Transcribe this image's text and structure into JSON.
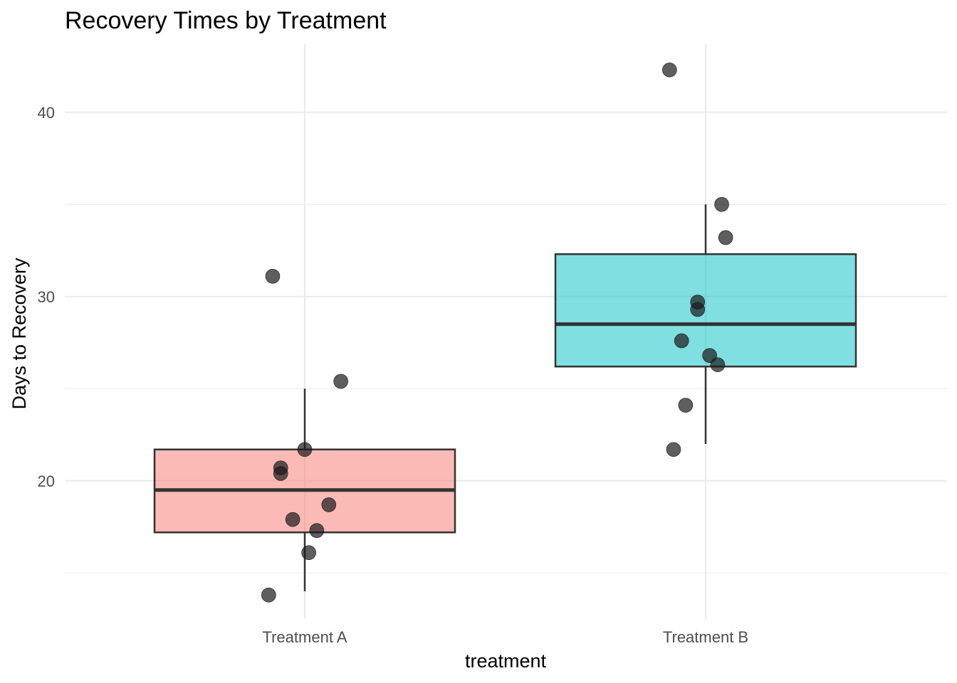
{
  "chart_data": {
    "type": "boxplot",
    "title": "Recovery Times by Treatment",
    "xlabel": "treatment",
    "ylabel": "Days to Recovery",
    "ylim": [
      12.5,
      43.7
    ],
    "yticks": [
      20,
      30,
      40
    ],
    "yminor": [
      15,
      25,
      35
    ],
    "grid": true,
    "categories": [
      "Treatment A",
      "Treatment B"
    ],
    "boxes": [
      {
        "category": "Treatment A",
        "color": "#F8766D",
        "whisker_low": 14.0,
        "q1": 17.2,
        "median": 19.5,
        "q3": 21.7,
        "whisker_high": 25.0,
        "points": [
          {
            "x": -0.08,
            "y": 31.1
          },
          {
            "x": 0.09,
            "y": 25.4
          },
          {
            "x": 0.0,
            "y": 21.7
          },
          {
            "x": -0.06,
            "y": 20.7
          },
          {
            "x": -0.06,
            "y": 20.4
          },
          {
            "x": 0.06,
            "y": 18.7
          },
          {
            "x": -0.03,
            "y": 17.9
          },
          {
            "x": 0.03,
            "y": 17.3
          },
          {
            "x": 0.01,
            "y": 16.1
          },
          {
            "x": -0.09,
            "y": 13.8
          }
        ]
      },
      {
        "category": "Treatment B",
        "color": "#00BFC4",
        "whisker_low": 22.0,
        "q1": 26.2,
        "median": 28.5,
        "q3": 32.3,
        "whisker_high": 35.0,
        "points": [
          {
            "x": -0.09,
            "y": 42.3
          },
          {
            "x": 0.04,
            "y": 35.0
          },
          {
            "x": 0.05,
            "y": 33.2
          },
          {
            "x": -0.02,
            "y": 29.7
          },
          {
            "x": -0.02,
            "y": 29.3
          },
          {
            "x": -0.06,
            "y": 27.6
          },
          {
            "x": 0.01,
            "y": 26.8
          },
          {
            "x": 0.03,
            "y": 26.3
          },
          {
            "x": -0.05,
            "y": 24.1
          },
          {
            "x": -0.08,
            "y": 21.7
          }
        ]
      }
    ]
  }
}
